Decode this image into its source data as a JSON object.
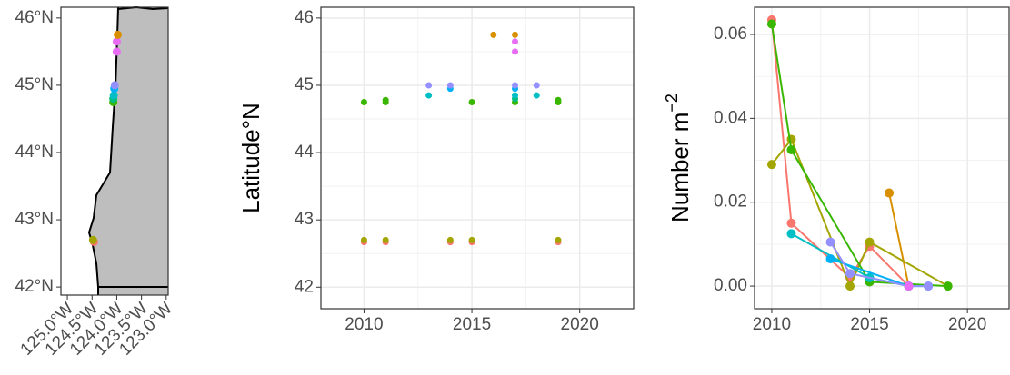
{
  "chart_data": [
    {
      "type": "map",
      "xlim": [
        -125.13,
        -122.96
      ],
      "ylim": [
        41.88,
        46.16
      ],
      "xticks": [
        {
          "value": -125.0,
          "label": "125.0°W"
        },
        {
          "value": -124.5,
          "label": "124.5°W"
        },
        {
          "value": -124.0,
          "label": "124.0°W"
        },
        {
          "value": -123.5,
          "label": "123.5°W"
        },
        {
          "value": -123.0,
          "label": "123.0°W"
        }
      ],
      "yticks": [
        {
          "value": 42,
          "label": "42°N"
        },
        {
          "value": 43,
          "label": "43°N"
        },
        {
          "value": 44,
          "label": "44°N"
        },
        {
          "value": 45,
          "label": "45°N"
        },
        {
          "value": 46,
          "label": "46°N"
        }
      ],
      "grid": false,
      "series": [
        {
          "color": "#F8766D",
          "x": [
            -124.46
          ],
          "values": [
            42.67
          ]
        },
        {
          "color": "#A3A500",
          "x": [
            -124.48
          ],
          "values": [
            42.7
          ]
        },
        {
          "color": "#39B600",
          "x": [
            -124.07
          ],
          "values": [
            44.75
          ]
        },
        {
          "color": "#00BF7D",
          "x": [
            -124.07
          ],
          "values": [
            44.8
          ]
        },
        {
          "color": "#00BFC4",
          "x": [
            -124.06
          ],
          "values": [
            44.85
          ]
        },
        {
          "color": "#00B0F6",
          "x": [
            -124.05
          ],
          "values": [
            44.95
          ]
        },
        {
          "color": "#9590FF",
          "x": [
            -124.04
          ],
          "values": [
            45.0
          ]
        },
        {
          "color": "#E76BF3",
          "x": [
            -124.0
          ],
          "values": [
            45.5
          ]
        },
        {
          "color": "#E76BF3",
          "x": [
            -124.0
          ],
          "values": [
            45.65
          ]
        },
        {
          "color": "#D89000",
          "x": [
            -123.98
          ],
          "values": [
            45.75
          ]
        }
      ]
    },
    {
      "type": "scatter",
      "ylabel": "Latitude°N",
      "xlim": [
        2008.0,
        2022.5
      ],
      "ylim": [
        41.68,
        46.16
      ],
      "xticks": [
        2010,
        2015,
        2020
      ],
      "yticks": [
        42,
        43,
        44,
        45,
        46
      ],
      "grid": true,
      "series": [
        {
          "color": "#F8766D",
          "x": [
            2010,
            2011,
            2014,
            2015,
            2019
          ],
          "values": [
            42.67,
            42.67,
            42.67,
            42.67,
            42.67
          ]
        },
        {
          "color": "#A3A500",
          "x": [
            2010,
            2011,
            2014,
            2015,
            2019
          ],
          "values": [
            42.7,
            42.7,
            42.7,
            42.7,
            42.7
          ]
        },
        {
          "color": "#39B600",
          "x": [
            2010,
            2011,
            2011,
            2015,
            2017,
            2019,
            2019
          ],
          "values": [
            44.75,
            44.75,
            44.78,
            44.75,
            44.75,
            44.75,
            44.78
          ]
        },
        {
          "color": "#00BF7D",
          "x": [
            2017
          ],
          "values": [
            44.8
          ]
        },
        {
          "color": "#00BFC4",
          "x": [
            2013,
            2017,
            2018
          ],
          "values": [
            44.85,
            44.85,
            44.85
          ]
        },
        {
          "color": "#00B0F6",
          "x": [
            2014,
            2017
          ],
          "values": [
            44.95,
            44.95
          ]
        },
        {
          "color": "#9590FF",
          "x": [
            2013,
            2014,
            2017,
            2018
          ],
          "values": [
            45.0,
            45.0,
            45.0,
            45.0
          ]
        },
        {
          "color": "#E76BF3",
          "x": [
            2017,
            2017
          ],
          "values": [
            45.5,
            45.65
          ]
        },
        {
          "color": "#D89000",
          "x": [
            2016,
            2017
          ],
          "values": [
            45.75,
            45.75
          ]
        }
      ]
    },
    {
      "type": "line",
      "ylabel": {
        "text": "Number m",
        "superscript": "−2"
      },
      "xlim": [
        2009.12,
        2022.13
      ],
      "ylim": [
        -0.0054,
        0.0665
      ],
      "xticks": [
        2010,
        2015,
        2020
      ],
      "yticks": [
        {
          "value": 0,
          "label": "0.00"
        },
        0.02,
        0.04,
        0.06
      ],
      "grid": true,
      "series": [
        {
          "color": "#F8766D",
          "x": [
            2010,
            2011,
            2014,
            2015,
            2017
          ],
          "values": [
            0.0635,
            0.015,
            0.002,
            0.0095,
            0.0
          ]
        },
        {
          "color": "#D89000",
          "x": [
            2016,
            2017
          ],
          "values": [
            0.0222,
            0.0
          ]
        },
        {
          "color": "#A3A500",
          "x": [
            2010,
            2011,
            2014,
            2015,
            2019
          ],
          "values": [
            0.029,
            0.035,
            0.0,
            0.0105,
            0.0
          ]
        },
        {
          "color": "#39B600",
          "x": [
            2010,
            2011,
            2015,
            2019
          ],
          "values": [
            0.0625,
            0.0325,
            0.001,
            0.0
          ]
        },
        {
          "color": "#00BFC4",
          "x": [
            2011,
            2015,
            2017
          ],
          "values": [
            0.0125,
            0.002,
            0.0
          ]
        },
        {
          "color": "#00B0F6",
          "x": [
            2013,
            2017,
            2018
          ],
          "values": [
            0.0065,
            0.0,
            0.0
          ]
        },
        {
          "color": "#9590FF",
          "x": [
            2013,
            2014,
            2017,
            2018
          ],
          "values": [
            0.0105,
            0.003,
            0.0,
            0.0
          ]
        },
        {
          "color": "#E76BF3",
          "x": [
            2017
          ],
          "values": [
            0.0
          ]
        }
      ]
    }
  ]
}
